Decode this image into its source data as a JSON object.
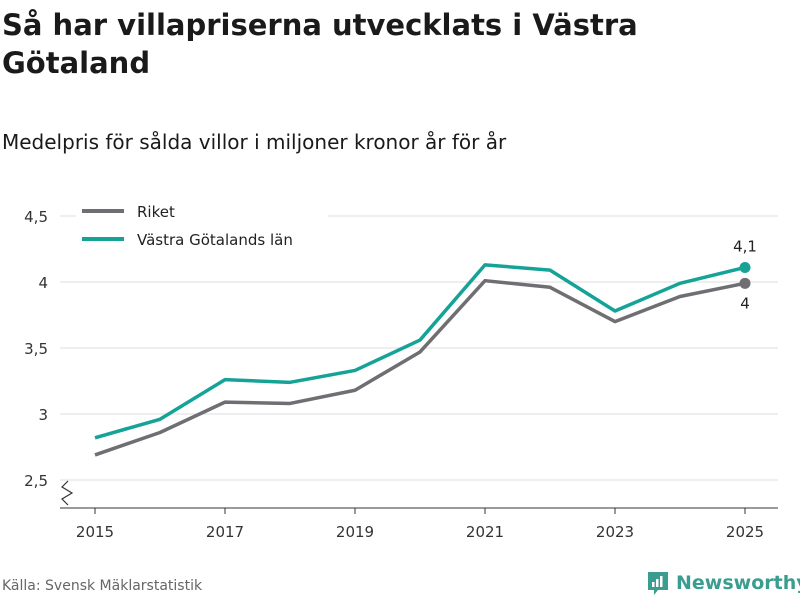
{
  "title": "Så har villapriserna utvecklats i Västra Götaland",
  "subtitle": "Medelpris för sålda villor i miljoner kronor år för år",
  "source": "Källa: Svensk Mäklarstatistik",
  "brand": "Newsworthy",
  "chart_data": {
    "type": "line",
    "x": [
      2015,
      2016,
      2017,
      2018,
      2019,
      2020,
      2021,
      2022,
      2023,
      2024,
      2025
    ],
    "xticks": [
      "2015",
      "2017",
      "2019",
      "2021",
      "2023",
      "2025"
    ],
    "yticks": [
      "2,5",
      "3",
      "3,5",
      "4",
      "4,5"
    ],
    "ylim": [
      2.5,
      4.5
    ],
    "series": [
      {
        "name": "Riket",
        "color": "#6e6e73",
        "values": [
          2.69,
          2.86,
          3.09,
          3.08,
          3.18,
          3.47,
          4.01,
          3.96,
          3.7,
          3.89,
          3.99
        ],
        "end_label": "4"
      },
      {
        "name": "Västra Götalands län",
        "color": "#16a397",
        "values": [
          2.82,
          2.96,
          3.26,
          3.24,
          3.33,
          3.56,
          4.13,
          4.09,
          3.78,
          3.99,
          4.11
        ],
        "end_label": "4,1"
      }
    ],
    "legend": "top-left"
  }
}
